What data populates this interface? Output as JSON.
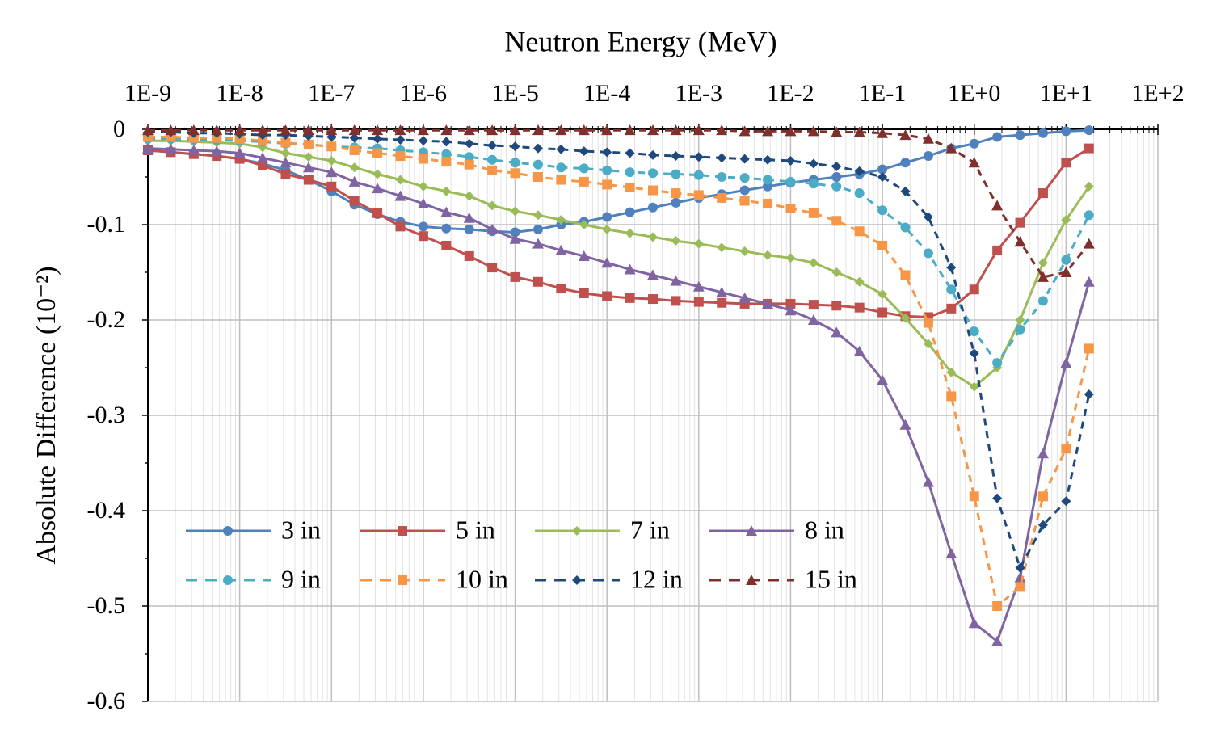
{
  "chart_data": {
    "type": "line",
    "x_label": "Neutron Energy (MeV)",
    "y_label": "Absolute Difference (10⁻²)",
    "xscale": "log",
    "x_axis_position": "top",
    "grid": true,
    "minor_grid": true,
    "legend": "lower left",
    "xlim": [
      1e-09,
      100
    ],
    "ylim": [
      -0.6,
      0
    ],
    "xticks": [
      {
        "value": 1e-09,
        "label": "1E-9"
      },
      {
        "value": 1e-08,
        "label": "1E-8"
      },
      {
        "value": 1e-07,
        "label": "1E-7"
      },
      {
        "value": 1e-06,
        "label": "1E-6"
      },
      {
        "value": 1e-05,
        "label": "1E-5"
      },
      {
        "value": 0.0001,
        "label": "1E-4"
      },
      {
        "value": 0.001,
        "label": "1E-3"
      },
      {
        "value": 0.01,
        "label": "1E-2"
      },
      {
        "value": 0.1,
        "label": "1E-1"
      },
      {
        "value": 1,
        "label": "1E+0"
      },
      {
        "value": 10,
        "label": "1E+1"
      },
      {
        "value": 100,
        "label": "1E+2"
      }
    ],
    "yticks": [
      0,
      -0.1,
      -0.2,
      -0.3,
      -0.4,
      -0.5,
      -0.6
    ],
    "x": [
      1e-09,
      1.778e-09,
      3.162e-09,
      5.623e-09,
      1e-08,
      1.778e-08,
      3.162e-08,
      5.623e-08,
      1e-07,
      1.778e-07,
      3.162e-07,
      5.623e-07,
      1e-06,
      1.778e-06,
      3.162e-06,
      5.623e-06,
      1e-05,
      1.778e-05,
      3.162e-05,
      5.623e-05,
      0.0001,
      0.0001778,
      0.0003162,
      0.0005623,
      0.001,
      0.001778,
      0.003162,
      0.005623,
      0.01,
      0.01778,
      0.03162,
      0.05623,
      0.1,
      0.1778,
      0.3162,
      0.5623,
      1,
      1.778,
      3.162,
      5.623,
      10,
      17.78
    ],
    "series": [
      {
        "name": "3 in",
        "color": "#4f81bd",
        "marker": "circle",
        "dashed": false,
        "values": [
          -0.022,
          -0.024,
          -0.026,
          -0.028,
          -0.031,
          -0.036,
          -0.043,
          -0.053,
          -0.065,
          -0.079,
          -0.089,
          -0.097,
          -0.102,
          -0.104,
          -0.105,
          -0.107,
          -0.108,
          -0.105,
          -0.1,
          -0.097,
          -0.092,
          -0.087,
          -0.082,
          -0.077,
          -0.072,
          -0.068,
          -0.064,
          -0.06,
          -0.056,
          -0.053,
          -0.05,
          -0.047,
          -0.042,
          -0.035,
          -0.028,
          -0.02,
          -0.015,
          -0.008,
          -0.006,
          -0.004,
          -0.002,
          -0.001
        ]
      },
      {
        "name": "5 in",
        "color": "#c0504d",
        "marker": "square",
        "dashed": false,
        "values": [
          -0.022,
          -0.024,
          -0.026,
          -0.028,
          -0.031,
          -0.038,
          -0.047,
          -0.053,
          -0.06,
          -0.075,
          -0.088,
          -0.102,
          -0.112,
          -0.122,
          -0.133,
          -0.145,
          -0.155,
          -0.16,
          -0.167,
          -0.172,
          -0.175,
          -0.177,
          -0.178,
          -0.18,
          -0.181,
          -0.182,
          -0.183,
          -0.183,
          -0.183,
          -0.184,
          -0.185,
          -0.187,
          -0.192,
          -0.196,
          -0.197,
          -0.188,
          -0.168,
          -0.127,
          -0.098,
          -0.067,
          -0.035,
          -0.02
        ]
      },
      {
        "name": "7 in",
        "color": "#9bbb59",
        "marker": "diamond",
        "dashed": false,
        "values": [
          -0.012,
          -0.012,
          -0.013,
          -0.014,
          -0.015,
          -0.019,
          -0.025,
          -0.029,
          -0.033,
          -0.04,
          -0.047,
          -0.053,
          -0.06,
          -0.065,
          -0.07,
          -0.08,
          -0.086,
          -0.09,
          -0.095,
          -0.1,
          -0.105,
          -0.109,
          -0.113,
          -0.117,
          -0.12,
          -0.124,
          -0.128,
          -0.132,
          -0.135,
          -0.14,
          -0.15,
          -0.16,
          -0.173,
          -0.198,
          -0.225,
          -0.255,
          -0.27,
          -0.25,
          -0.2,
          -0.14,
          -0.095,
          -0.06
        ]
      },
      {
        "name": "8 in",
        "color": "#8064a2",
        "marker": "triangle",
        "dashed": false,
        "values": [
          -0.02,
          -0.021,
          -0.022,
          -0.023,
          -0.025,
          -0.03,
          -0.035,
          -0.04,
          -0.045,
          -0.055,
          -0.062,
          -0.07,
          -0.078,
          -0.087,
          -0.093,
          -0.105,
          -0.115,
          -0.12,
          -0.127,
          -0.133,
          -0.14,
          -0.147,
          -0.153,
          -0.159,
          -0.165,
          -0.171,
          -0.177,
          -0.183,
          -0.19,
          -0.2,
          -0.213,
          -0.233,
          -0.263,
          -0.31,
          -0.37,
          -0.445,
          -0.518,
          -0.537,
          -0.47,
          -0.34,
          -0.245,
          -0.16
        ]
      },
      {
        "name": "9 in",
        "color": "#4bacc6",
        "marker": "circle",
        "dashed": true,
        "values": [
          -0.01,
          -0.01,
          -0.011,
          -0.011,
          -0.012,
          -0.013,
          -0.015,
          -0.016,
          -0.018,
          -0.019,
          -0.02,
          -0.022,
          -0.024,
          -0.026,
          -0.029,
          -0.032,
          -0.035,
          -0.037,
          -0.04,
          -0.041,
          -0.043,
          -0.045,
          -0.046,
          -0.047,
          -0.048,
          -0.05,
          -0.051,
          -0.053,
          -0.055,
          -0.057,
          -0.06,
          -0.067,
          -0.085,
          -0.103,
          -0.13,
          -0.168,
          -0.212,
          -0.245,
          -0.21,
          -0.18,
          -0.137,
          -0.09
        ]
      },
      {
        "name": "10 in",
        "color": "#f79646",
        "marker": "square",
        "dashed": true,
        "values": [
          -0.008,
          -0.008,
          -0.009,
          -0.009,
          -0.01,
          -0.012,
          -0.014,
          -0.016,
          -0.018,
          -0.022,
          -0.025,
          -0.028,
          -0.031,
          -0.034,
          -0.037,
          -0.043,
          -0.046,
          -0.05,
          -0.053,
          -0.055,
          -0.058,
          -0.061,
          -0.064,
          -0.067,
          -0.069,
          -0.072,
          -0.075,
          -0.078,
          -0.083,
          -0.088,
          -0.096,
          -0.107,
          -0.122,
          -0.153,
          -0.203,
          -0.28,
          -0.385,
          -0.5,
          -0.48,
          -0.385,
          -0.335,
          -0.23
        ]
      },
      {
        "name": "12 in",
        "color": "#1f497d",
        "marker": "diamond",
        "dashed": true,
        "values": [
          -0.003,
          -0.003,
          -0.004,
          -0.004,
          -0.005,
          -0.006,
          -0.006,
          -0.007,
          -0.008,
          -0.009,
          -0.01,
          -0.011,
          -0.012,
          -0.013,
          -0.015,
          -0.017,
          -0.018,
          -0.02,
          -0.021,
          -0.023,
          -0.024,
          -0.025,
          -0.027,
          -0.028,
          -0.029,
          -0.03,
          -0.031,
          -0.032,
          -0.033,
          -0.036,
          -0.039,
          -0.044,
          -0.05,
          -0.065,
          -0.092,
          -0.145,
          -0.235,
          -0.387,
          -0.46,
          -0.415,
          -0.39,
          -0.278
        ]
      },
      {
        "name": "15 in",
        "color": "#7f2f2c",
        "marker": "triangle",
        "dashed": true,
        "values": [
          -0.001,
          -0.001,
          -0.001,
          -0.001,
          -0.001,
          -0.001,
          -0.001,
          -0.001,
          -0.001,
          -0.001,
          -0.001,
          -0.001,
          -0.001,
          -0.001,
          -0.001,
          -0.001,
          -0.001,
          -0.001,
          -0.001,
          -0.001,
          -0.001,
          -0.001,
          -0.001,
          -0.001,
          -0.001,
          -0.001,
          -0.002,
          -0.002,
          -0.002,
          -0.002,
          -0.003,
          -0.003,
          -0.004,
          -0.006,
          -0.01,
          -0.02,
          -0.035,
          -0.08,
          -0.118,
          -0.155,
          -0.15,
          -0.12
        ]
      }
    ]
  }
}
